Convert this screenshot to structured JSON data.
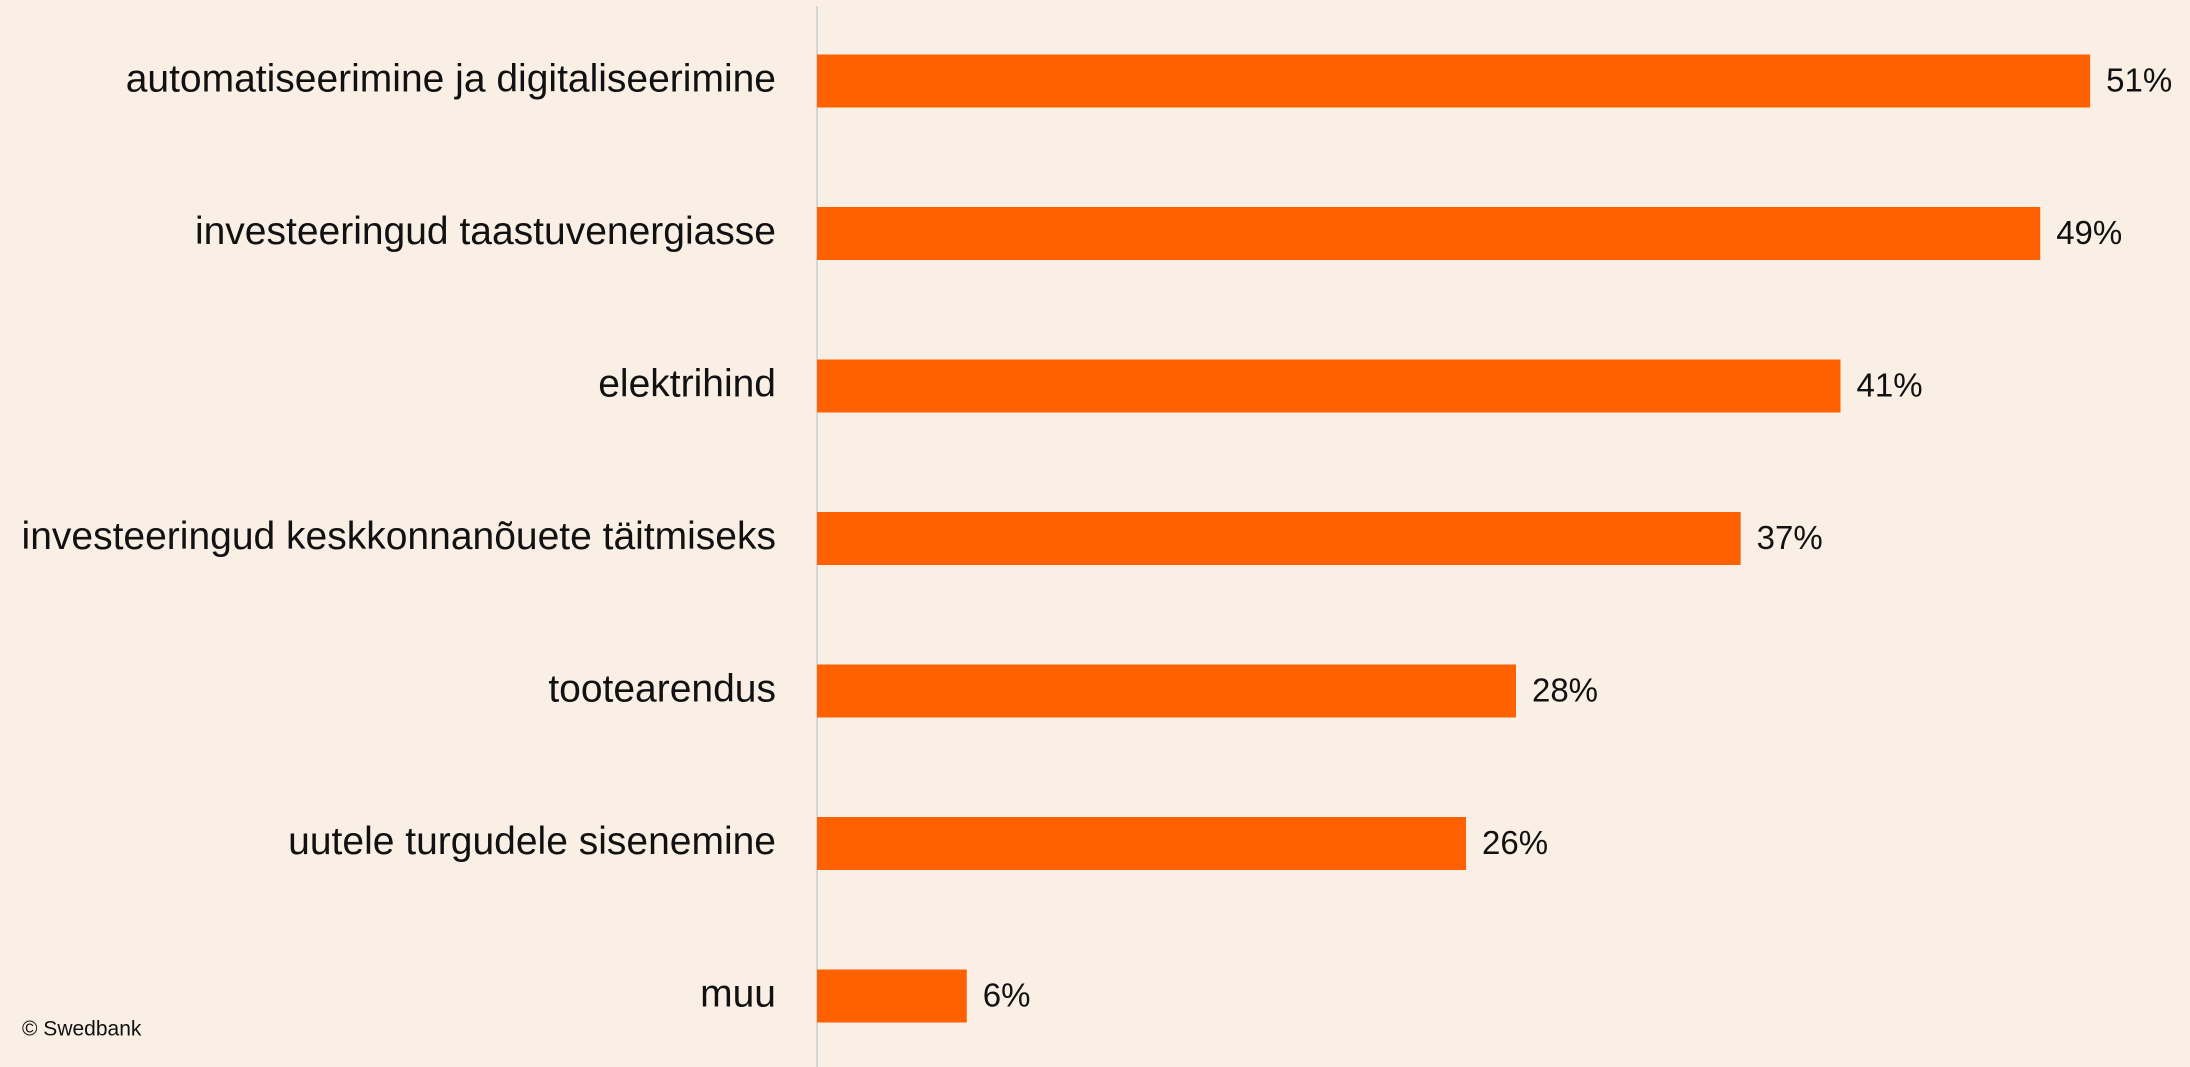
{
  "chart_data": {
    "type": "bar",
    "orientation": "horizontal",
    "categories": [
      "automatiseerimine ja digitaliseerimine",
      "investeeringud taastuvenergiasse",
      "elektrihind",
      "investeeringud keskkonnanõuete täitmiseks",
      "tootearendus",
      "uutele turgudele sisenemine",
      "muu"
    ],
    "values": [
      51,
      49,
      41,
      37,
      28,
      26,
      6
    ],
    "value_labels": [
      "51%",
      "49%",
      "41%",
      "37%",
      "28%",
      "26%",
      "6%"
    ],
    "color": "#ff6000",
    "xlim": [
      0,
      55
    ],
    "source": "© Swedbank"
  }
}
